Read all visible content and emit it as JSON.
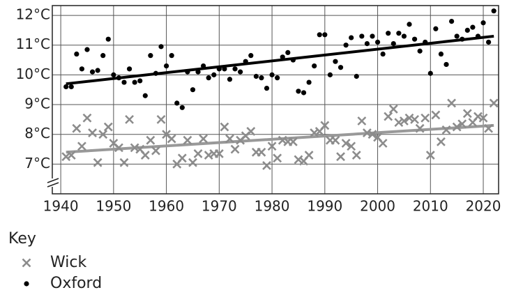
{
  "chart_data": {
    "type": "scatter",
    "x": [
      1941,
      1942,
      1943,
      1944,
      1945,
      1946,
      1947,
      1948,
      1949,
      1950,
      1951,
      1952,
      1953,
      1954,
      1955,
      1956,
      1957,
      1958,
      1959,
      1960,
      1961,
      1962,
      1963,
      1964,
      1965,
      1966,
      1967,
      1968,
      1969,
      1970,
      1971,
      1972,
      1973,
      1974,
      1975,
      1976,
      1977,
      1978,
      1979,
      1980,
      1981,
      1982,
      1983,
      1984,
      1985,
      1986,
      1987,
      1988,
      1989,
      1990,
      1991,
      1992,
      1993,
      1994,
      1995,
      1996,
      1997,
      1998,
      1999,
      2000,
      2001,
      2002,
      2003,
      2004,
      2005,
      2006,
      2007,
      2008,
      2009,
      2010,
      2011,
      2012,
      2013,
      2014,
      2015,
      2016,
      2017,
      2018,
      2019,
      2020,
      2021,
      2022
    ],
    "series": [
      {
        "name": "Wick",
        "color": "#8c8c8c",
        "marker": "x",
        "values": [
          7.25,
          7.3,
          8.2,
          7.6,
          8.55,
          8.05,
          7.05,
          8.0,
          8.25,
          7.7,
          7.55,
          7.05,
          8.5,
          7.55,
          7.5,
          7.3,
          7.8,
          7.45,
          8.5,
          8.0,
          7.85,
          7.0,
          7.2,
          7.8,
          7.05,
          7.35,
          7.85,
          7.3,
          7.35,
          7.35,
          8.25,
          7.85,
          7.5,
          7.8,
          7.95,
          8.1,
          7.4,
          7.4,
          6.95,
          7.6,
          7.2,
          7.8,
          7.75,
          7.75,
          7.15,
          7.1,
          7.3,
          8.05,
          8.1,
          8.3,
          7.8,
          7.8,
          7.25,
          7.7,
          7.6,
          7.3,
          8.45,
          8.05,
          8.0,
          7.9,
          7.7,
          8.6,
          8.85,
          8.4,
          8.45,
          8.55,
          8.5,
          8.2,
          8.55,
          7.3,
          8.65,
          7.75,
          8.15,
          9.05,
          8.25,
          8.35,
          8.7,
          8.4,
          8.6,
          8.55,
          8.2,
          9.05
        ],
        "trend": {
          "x": [
            1941,
            2022
          ],
          "values": [
            7.4,
            8.3
          ],
          "color": "#999999"
        }
      },
      {
        "name": "Oxford",
        "color": "#000000",
        "marker": "circle",
        "values": [
          9.6,
          9.6,
          10.7,
          10.2,
          10.85,
          10.1,
          10.15,
          10.65,
          11.2,
          10.0,
          9.9,
          9.75,
          10.2,
          9.75,
          9.8,
          9.3,
          10.65,
          10.05,
          10.95,
          10.3,
          10.65,
          9.05,
          8.9,
          10.1,
          9.5,
          10.1,
          10.3,
          9.9,
          10.0,
          10.2,
          10.2,
          9.85,
          10.2,
          10.1,
          10.45,
          10.65,
          9.95,
          9.9,
          9.55,
          10.0,
          9.9,
          10.6,
          10.75,
          10.5,
          9.45,
          9.4,
          9.75,
          10.3,
          11.35,
          11.35,
          10.0,
          10.45,
          10.25,
          11.0,
          11.25,
          9.95,
          11.3,
          11.05,
          11.3,
          11.1,
          10.7,
          11.4,
          11.05,
          11.4,
          11.3,
          11.7,
          11.2,
          10.8,
          11.1,
          10.05,
          11.55,
          10.7,
          10.35,
          11.8,
          11.3,
          11.2,
          11.5,
          11.6,
          11.3,
          11.75,
          11.1,
          12.15
        ],
        "trend": {
          "x": [
            1941,
            2022
          ],
          "values": [
            9.7,
            11.3
          ],
          "color": "#000000"
        }
      }
    ],
    "xlim": [
      1938.4,
      2022.9
    ],
    "xticks": [
      1940,
      1950,
      1960,
      1970,
      1980,
      1990,
      2000,
      2010,
      2020
    ],
    "ylim": [
      6,
      12.33
    ],
    "yticks": [
      {
        "value": 7,
        "label": "7°C"
      },
      {
        "value": 8,
        "label": "8°C"
      },
      {
        "value": 9,
        "label": "9°C"
      },
      {
        "value": 10,
        "label": "10°C"
      },
      {
        "value": 11,
        "label": "11°C"
      },
      {
        "value": 12,
        "label": "12°C"
      }
    ],
    "grid": true,
    "legend_title": "Key",
    "legend": "below-left"
  }
}
